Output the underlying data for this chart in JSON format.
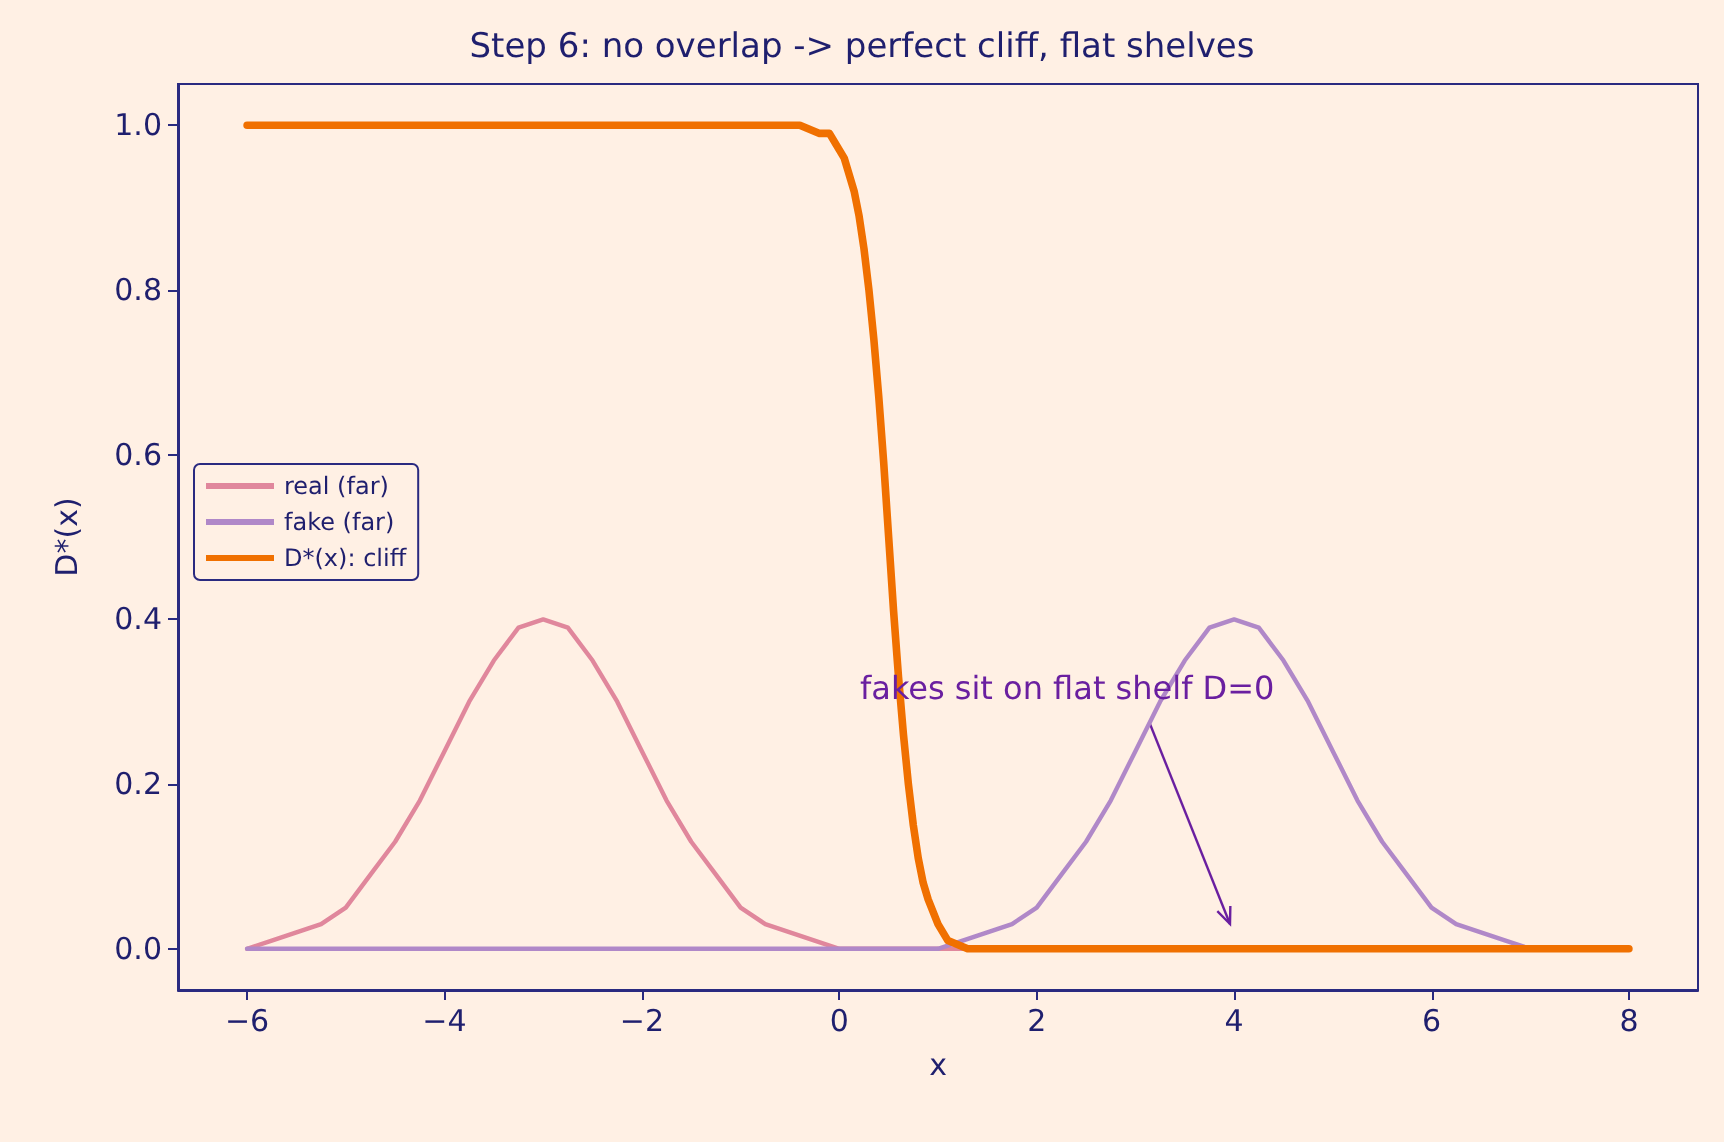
{
  "chart_data": {
    "type": "line",
    "title": "Step 6: no overlap -> perfect cliff, flat shelves",
    "xlabel": "x",
    "ylabel": "D*(x)",
    "xlim": [
      -6.7,
      8.7
    ],
    "xticks": [
      -6,
      -4,
      -2,
      0,
      2,
      4,
      6,
      8
    ],
    "ylim": [
      -0.05,
      1.05
    ],
    "yticks": [
      {
        "value": 0,
        "label": "0.0"
      },
      0.2,
      0.4,
      0.6,
      0.8,
      {
        "value": 1,
        "label": "1.0"
      }
    ],
    "grid": false,
    "legend": "left",
    "marker": "none",
    "line_style": "solid",
    "series": [
      {
        "name": "real (far)",
        "color": "#e0879c",
        "x": [
          -6,
          -5.75,
          -5.5,
          -5.25,
          -5,
          -4.75,
          -4.5,
          -4.25,
          -4,
          -3.75,
          -3.5,
          -3.25,
          -3,
          -2.75,
          -2.5,
          -2.25,
          -2,
          -1.75,
          -1.5,
          -1.25,
          -1,
          -0.75,
          -0.5,
          -0.25,
          0,
          8
        ],
        "values": [
          0.0,
          0.01,
          0.02,
          0.03,
          0.05,
          0.09,
          0.13,
          0.18,
          0.24,
          0.3,
          0.35,
          0.39,
          0.4,
          0.39,
          0.35,
          0.3,
          0.24,
          0.18,
          0.13,
          0.09,
          0.05,
          0.03,
          0.02,
          0.01,
          0.0,
          0.0
        ]
      },
      {
        "name": "fake (far)",
        "color": "#b088c8",
        "x": [
          -6,
          1,
          1.25,
          1.5,
          1.75,
          2,
          2.25,
          2.5,
          2.75,
          3,
          3.25,
          3.5,
          3.75,
          4,
          4.25,
          4.5,
          4.75,
          5,
          5.25,
          5.5,
          5.75,
          6,
          6.25,
          6.5,
          6.75,
          7,
          8
        ],
        "values": [
          0.0,
          0.0,
          0.01,
          0.02,
          0.03,
          0.05,
          0.09,
          0.13,
          0.18,
          0.24,
          0.3,
          0.35,
          0.39,
          0.4,
          0.39,
          0.35,
          0.3,
          0.24,
          0.18,
          0.13,
          0.09,
          0.05,
          0.03,
          0.02,
          0.01,
          0.0,
          0.0
        ]
      },
      {
        "name": "D*(x): cliff",
        "color": "#f07000",
        "x": [
          -6,
          -0.4,
          -0.2,
          -0.1,
          0,
          0.05,
          0.1,
          0.15,
          0.2,
          0.25,
          0.3,
          0.35,
          0.4,
          0.45,
          0.5,
          0.55,
          0.6,
          0.65,
          0.7,
          0.75,
          0.8,
          0.85,
          0.9,
          1.0,
          1.1,
          1.3,
          8
        ],
        "values": [
          1.0,
          1.0,
          0.99,
          0.99,
          0.97,
          0.96,
          0.94,
          0.92,
          0.89,
          0.85,
          0.8,
          0.74,
          0.67,
          0.59,
          0.5,
          0.41,
          0.33,
          0.26,
          0.2,
          0.15,
          0.11,
          0.08,
          0.06,
          0.03,
          0.01,
          0.0,
          0.0
        ]
      }
    ],
    "annotations": [
      "fakes sit on flat shelf D=0"
    ]
  }
}
